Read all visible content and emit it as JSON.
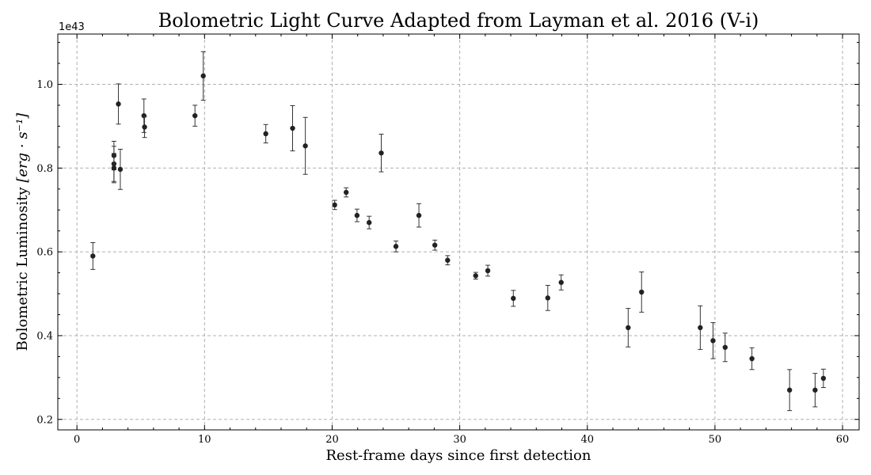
{
  "chart_data": {
    "type": "scatter",
    "title": "Bolometric Light Curve Adapted from Layman et al. 2016 (V-i)",
    "xlabel": "Rest-frame days since first detection",
    "ylabel_text": "Bolometric Luminosity ",
    "ylabel_units": "[erg · s⁻¹]",
    "y_offset_label": "1e43",
    "xlim": [
      -1.5,
      61.3
    ],
    "ylim": [
      0.175,
      1.12
    ],
    "xticks": [
      0,
      10,
      20,
      30,
      40,
      50,
      60
    ],
    "xtick_labels": [
      "0",
      "10",
      "20",
      "30",
      "40",
      "50",
      "60"
    ],
    "yticks": [
      0.2,
      0.4,
      0.6,
      0.8,
      1.0
    ],
    "ytick_labels": [
      "0.2",
      "0.4",
      "0.6",
      "0.8",
      "1.0"
    ],
    "grid": true,
    "marker_color": "#222222",
    "series": [
      {
        "x": [
          1.25,
          2.9,
          2.9,
          2.9,
          3.25,
          3.4,
          5.25,
          5.3,
          9.25,
          9.9,
          14.8,
          16.9,
          17.9,
          20.2,
          21.1,
          21.95,
          22.9,
          23.85,
          25.0,
          26.8,
          28.05,
          29.05,
          31.25,
          32.2,
          34.2,
          36.9,
          37.95,
          43.2,
          44.25,
          48.85,
          49.85,
          50.8,
          52.9,
          55.85,
          57.85,
          58.5
        ],
        "y": [
          0.59,
          0.83,
          0.81,
          0.8,
          0.953,
          0.797,
          0.925,
          0.898,
          0.925,
          1.02,
          0.882,
          0.895,
          0.853,
          0.712,
          0.742,
          0.687,
          0.67,
          0.836,
          0.613,
          0.687,
          0.616,
          0.58,
          0.543,
          0.555,
          0.489,
          0.49,
          0.527,
          0.419,
          0.504,
          0.419,
          0.388,
          0.372,
          0.345,
          0.27,
          0.27,
          0.298
        ],
        "err": [
          0.032,
          0.034,
          0.042,
          0.035,
          0.048,
          0.048,
          0.04,
          0.025,
          0.025,
          0.058,
          0.022,
          0.054,
          0.068,
          0.011,
          0.011,
          0.015,
          0.015,
          0.045,
          0.013,
          0.028,
          0.012,
          0.011,
          0.008,
          0.013,
          0.019,
          0.03,
          0.018,
          0.046,
          0.048,
          0.052,
          0.043,
          0.034,
          0.026,
          0.049,
          0.04,
          0.022
        ]
      }
    ]
  }
}
